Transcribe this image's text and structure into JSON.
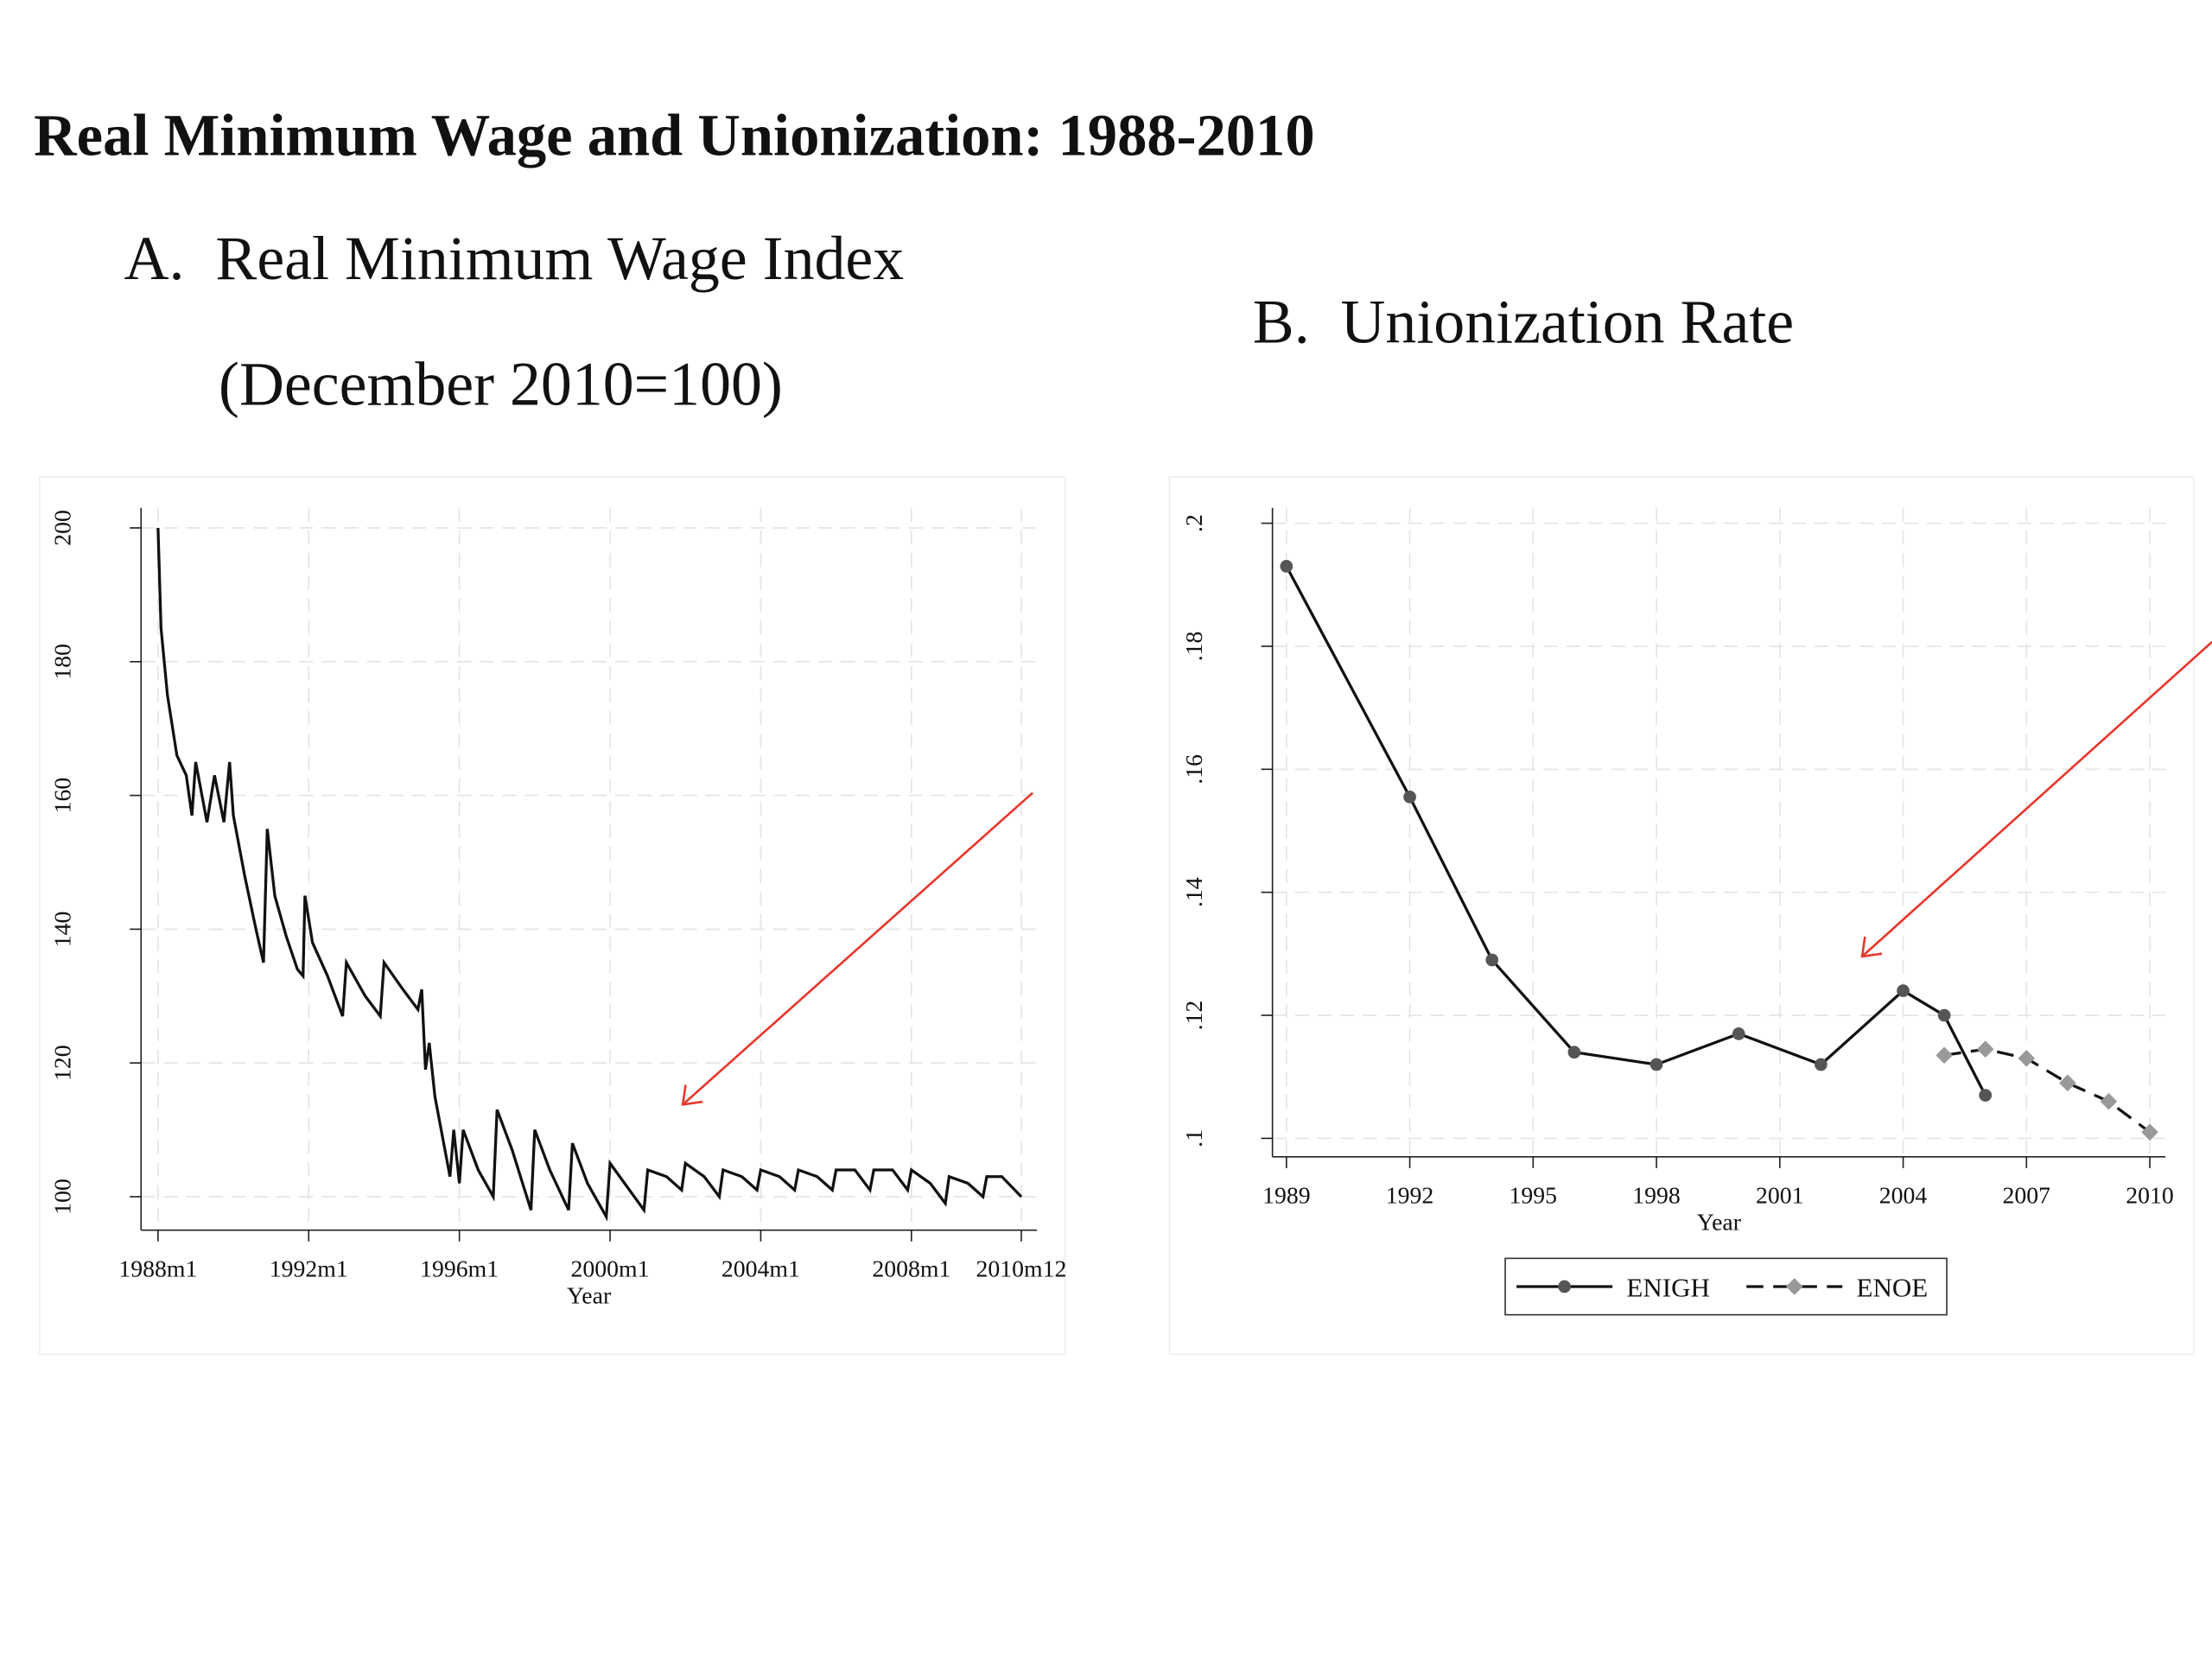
{
  "title": "Real Minimum Wage and Unionization: 1988-2010",
  "chart_data": [
    {
      "type": "line",
      "title": "A.  Real Minimum Wage Index",
      "subtitle": "(December 2010=100)",
      "xlabel": "Year",
      "color": "#111111",
      "grid": true,
      "x": [
        1988.0,
        1988.08,
        1988.25,
        1988.5,
        1988.75,
        1988.9,
        1989.0,
        1989.3,
        1989.5,
        1989.75,
        1989.9,
        1990.0,
        1990.3,
        1990.6,
        1990.8,
        1990.9,
        1991.1,
        1991.4,
        1991.7,
        1991.85,
        1991.9,
        1992.1,
        1992.5,
        1992.9,
        1993.0,
        1993.5,
        1993.9,
        1994.0,
        1994.5,
        1994.9,
        1995.0,
        1995.1,
        1995.2,
        1995.35,
        1995.75,
        1995.85,
        1996.0,
        1996.1,
        1996.5,
        1996.9,
        1997.0,
        1997.4,
        1997.9,
        1998.0,
        1998.4,
        1998.9,
        1999.0,
        1999.4,
        1999.9,
        2000.0,
        2000.9,
        2001.0,
        2001.5,
        2001.9,
        2002.0,
        2002.5,
        2002.9,
        2003.0,
        2003.5,
        2003.9,
        2004.0,
        2004.5,
        2004.9,
        2005.0,
        2005.5,
        2005.9,
        2006.0,
        2006.5,
        2006.9,
        2007.0,
        2007.5,
        2007.9,
        2008.0,
        2008.5,
        2008.9,
        2009.0,
        2009.5,
        2009.9,
        2010.0,
        2010.4,
        2010.917
      ],
      "values": [
        200,
        185,
        175,
        166,
        163,
        157,
        165,
        156,
        163,
        156,
        165,
        157,
        148,
        140,
        135,
        155,
        145,
        139,
        134,
        133,
        145,
        138,
        133,
        127,
        135,
        130,
        127,
        135,
        131,
        128,
        131,
        119,
        123,
        115,
        103,
        110,
        102,
        110,
        104,
        100,
        113,
        107,
        98,
        110,
        104,
        98,
        108,
        102,
        97,
        105,
        98,
        104,
        103,
        101,
        105,
        103,
        100,
        104,
        103,
        101,
        104,
        103,
        101,
        104,
        103,
        101,
        104,
        104,
        101,
        104,
        104,
        101,
        104,
        102,
        99,
        103,
        102,
        100,
        103,
        103,
        100
      ],
      "xlim": [
        1987.55,
        2011.33
      ],
      "ylim": [
        95,
        203
      ],
      "xticks": [
        {
          "value": 1988,
          "label": "1988m1"
        },
        {
          "value": 1992,
          "label": "1992m1"
        },
        {
          "value": 1996,
          "label": "1996m1"
        },
        {
          "value": 2000,
          "label": "2000m1"
        },
        {
          "value": 2004,
          "label": "2004m1"
        },
        {
          "value": 2008,
          "label": "2008m1"
        },
        {
          "value": 2010.917,
          "label": "2010m12"
        }
      ],
      "yticks": [
        100,
        120,
        140,
        160,
        180,
        200
      ]
    },
    {
      "type": "line",
      "title": "B.  Unionization Rate",
      "xlabel": "Year",
      "grid": true,
      "legend": "bottom",
      "x": [
        1989,
        1992,
        1994,
        1996,
        1998,
        2000,
        2002,
        2004,
        2005,
        2006,
        2007,
        2008,
        2009,
        2010
      ],
      "series": [
        {
          "name": "ENIGH",
          "color": "#111111",
          "marker": "circle",
          "marker_color": "#555555",
          "line_style": "solid",
          "values": [
            0.193,
            0.1555,
            0.129,
            0.114,
            0.112,
            0.117,
            0.112,
            0.124,
            0.12,
            0.107,
            null,
            null,
            null,
            null
          ]
        },
        {
          "name": "ENOE",
          "color": "#111111",
          "marker": "diamond",
          "marker_color": "#999999",
          "line_style": "dashed",
          "values": [
            null,
            null,
            null,
            null,
            null,
            null,
            null,
            null,
            0.1135,
            0.1145,
            0.113,
            0.109,
            0.106,
            0.101
          ]
        }
      ],
      "xlim": [
        1988.66,
        2010.38
      ],
      "ylim": [
        0.097,
        0.2025
      ],
      "xticks": [
        1989,
        1992,
        1995,
        1998,
        2001,
        2004,
        2007,
        2010
      ],
      "yticks": [
        {
          "value": 0.1,
          "label": ".1"
        },
        {
          "value": 0.12,
          "label": ".12"
        },
        {
          "value": 0.14,
          "label": ".14"
        },
        {
          "value": 0.16,
          "label": ".16"
        },
        {
          "value": 0.18,
          "label": ".18"
        },
        {
          "value": 0.2,
          "label": ".2"
        }
      ]
    }
  ]
}
